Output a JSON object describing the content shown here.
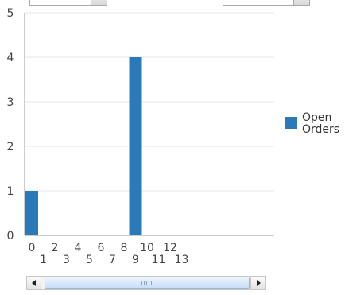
{
  "chart_data": {
    "type": "bar",
    "categories": [
      "0",
      "1",
      "2",
      "3",
      "4",
      "5",
      "6",
      "7",
      "8",
      "9",
      "10",
      "11",
      "12",
      "13"
    ],
    "series": [
      {
        "name": "Open Orders",
        "values": [
          1,
          0,
          0,
          0,
          0,
          0,
          0,
          0,
          0,
          4,
          0,
          0,
          0,
          0
        ],
        "color": "#2a7ab9"
      }
    ],
    "yticks": [
      "0",
      "1",
      "2",
      "3",
      "4",
      "5"
    ],
    "ylim": [
      0,
      5
    ],
    "title": "",
    "xlabel": "",
    "ylabel": "",
    "grid": true,
    "legend_position": "right",
    "x_tick_stagger": true
  },
  "legend": {
    "label_line1": "Open",
    "label_line2": "Orders"
  },
  "colors": {
    "bar": "#2a7ab9",
    "grid": "#e6e6e6",
    "axis": "#9a9a9a"
  },
  "scrollbar": {
    "left_icon": "arrow-left-icon",
    "right_icon": "arrow-right-icon",
    "grip_icon": "grip-icon"
  }
}
